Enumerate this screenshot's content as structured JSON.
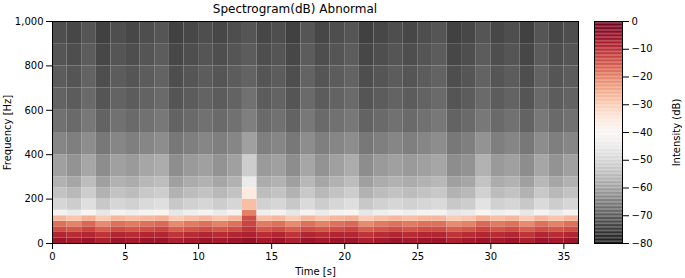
{
  "chart_data": {
    "type": "heatmap",
    "title": "Spectrogram(dB) Abnormal",
    "x_label": "Time [s]",
    "y_label": "Frequency [Hz]",
    "xlim": [
      0,
      36
    ],
    "xticks": [
      0,
      5,
      10,
      15,
      20,
      25,
      30,
      35
    ],
    "ylim": [
      0,
      1000
    ],
    "yticks": [
      0,
      200,
      400,
      600,
      800,
      1000
    ],
    "time_bins": [
      0,
      1,
      2,
      3,
      4,
      5,
      6,
      7,
      8,
      9,
      10,
      11,
      12,
      13,
      14,
      15,
      16,
      17,
      18,
      19,
      20,
      21,
      22,
      23,
      24,
      25,
      26,
      27,
      28,
      29,
      30,
      31,
      32,
      33,
      34,
      35,
      36
    ],
    "frequency_bins": [
      0,
      25,
      50,
      75,
      100,
      125,
      150,
      200,
      250,
      300,
      400,
      500,
      600,
      700,
      800,
      900,
      1000
    ],
    "cells": [
      [
        -6,
        -7,
        -6,
        -8,
        -6,
        -7,
        -6,
        -6,
        -8,
        -7,
        -6,
        -7,
        -6,
        -5,
        -7,
        -6,
        -8,
        -6,
        -7,
        -6,
        -6,
        -8,
        -7,
        -6,
        -7,
        -6,
        -6,
        -8,
        -7,
        -6,
        -7,
        -6,
        -8,
        -6,
        -7,
        -6
      ],
      [
        -9,
        -10,
        -9,
        -11,
        -9,
        -10,
        -9,
        -9,
        -11,
        -10,
        -9,
        -10,
        -9,
        -8,
        -10,
        -9,
        -11,
        -9,
        -10,
        -9,
        -9,
        -11,
        -10,
        -9,
        -10,
        -9,
        -9,
        -11,
        -10,
        -9,
        -10,
        -9,
        -11,
        -9,
        -10,
        -9
      ],
      [
        -14,
        -15,
        -13,
        -16,
        -14,
        -15,
        -14,
        -13,
        -16,
        -15,
        -14,
        -15,
        -14,
        -11,
        -15,
        -14,
        -16,
        -14,
        -15,
        -14,
        -13,
        -16,
        -15,
        -14,
        -15,
        -14,
        -14,
        -16,
        -15,
        -13,
        -15,
        -14,
        -16,
        -14,
        -15,
        -14
      ],
      [
        -18,
        -20,
        -17,
        -21,
        -18,
        -19,
        -18,
        -17,
        -21,
        -19,
        -18,
        -20,
        -18,
        -13,
        -19,
        -18,
        -21,
        -18,
        -20,
        -18,
        -17,
        -21,
        -19,
        -18,
        -19,
        -18,
        -18,
        -21,
        -20,
        -17,
        -19,
        -18,
        -21,
        -18,
        -20,
        -18
      ],
      [
        -27,
        -29,
        -26,
        -30,
        -27,
        -28,
        -27,
        -26,
        -30,
        -28,
        -27,
        -29,
        -27,
        -14,
        -28,
        -27,
        -30,
        -27,
        -29,
        -27,
        -26,
        -30,
        -28,
        -27,
        -28,
        -27,
        -27,
        -30,
        -29,
        -26,
        -28,
        -27,
        -30,
        -27,
        -29,
        -27
      ],
      [
        -42,
        -45,
        -41,
        -46,
        -42,
        -44,
        -42,
        -41,
        -46,
        -44,
        -42,
        -45,
        -42,
        -20,
        -44,
        -42,
        -46,
        -42,
        -45,
        -42,
        -41,
        -46,
        -44,
        -42,
        -44,
        -42,
        -42,
        -46,
        -45,
        -41,
        -44,
        -42,
        -46,
        -42,
        -45,
        -42
      ],
      [
        -50,
        -52,
        -48,
        -53,
        -50,
        -51,
        -49,
        -48,
        -53,
        -51,
        -50,
        -52,
        -50,
        -28,
        -51,
        -50,
        -53,
        -49,
        -52,
        -50,
        -48,
        -53,
        -51,
        -50,
        -51,
        -50,
        -49,
        -53,
        -52,
        -47,
        -51,
        -50,
        -53,
        -49,
        -52,
        -50
      ],
      [
        -54,
        -56,
        -52,
        -57,
        -54,
        -55,
        -53,
        -52,
        -57,
        -55,
        -54,
        -56,
        -54,
        -36,
        -55,
        -54,
        -57,
        -53,
        -56,
        -54,
        -52,
        -57,
        -55,
        -54,
        -55,
        -54,
        -53,
        -57,
        -56,
        -51,
        -55,
        -54,
        -57,
        -53,
        -56,
        -54
      ],
      [
        -57,
        -59,
        -55,
        -60,
        -57,
        -58,
        -56,
        -55,
        -60,
        -58,
        -57,
        -59,
        -57,
        -45,
        -58,
        -57,
        -60,
        -56,
        -59,
        -57,
        -55,
        -60,
        -58,
        -57,
        -58,
        -57,
        -56,
        -60,
        -59,
        -54,
        -58,
        -57,
        -60,
        -56,
        -59,
        -57
      ],
      [
        -60,
        -62,
        -59,
        -63,
        -60,
        -61,
        -59,
        -58,
        -63,
        -61,
        -60,
        -62,
        -60,
        -52,
        -61,
        -60,
        -63,
        -59,
        -62,
        -60,
        -58,
        -63,
        -61,
        -60,
        -61,
        -60,
        -59,
        -63,
        -62,
        -57,
        -61,
        -60,
        -63,
        -59,
        -62,
        -60
      ],
      [
        -64,
        -65,
        -63,
        -66,
        -64,
        -65,
        -64,
        -63,
        -66,
        -65,
        -64,
        -65,
        -64,
        -60,
        -65,
        -64,
        -66,
        -63,
        -65,
        -64,
        -63,
        -66,
        -65,
        -64,
        -65,
        -64,
        -63,
        -66,
        -65,
        -62,
        -65,
        -64,
        -66,
        -63,
        -65,
        -64
      ],
      [
        -67,
        -68,
        -66,
        -69,
        -67,
        -68,
        -67,
        -66,
        -69,
        -68,
        -67,
        -68,
        -67,
        -65,
        -68,
        -67,
        -69,
        -66,
        -68,
        -67,
        -66,
        -69,
        -68,
        -67,
        -68,
        -67,
        -66,
        -69,
        -68,
        -66,
        -68,
        -67,
        -69,
        -66,
        -68,
        -67
      ],
      [
        -69,
        -70,
        -68,
        -71,
        -69,
        -70,
        -69,
        -68,
        -71,
        -70,
        -69,
        -70,
        -69,
        -67,
        -70,
        -69,
        -71,
        -68,
        -70,
        -69,
        -68,
        -71,
        -70,
        -69,
        -70,
        -69,
        -68,
        -71,
        -70,
        -68,
        -70,
        -69,
        -71,
        -68,
        -70,
        -69
      ],
      [
        -70,
        -71,
        -69,
        -72,
        -70,
        -71,
        -70,
        -69,
        -72,
        -71,
        -70,
        -71,
        -70,
        -69,
        -71,
        -70,
        -72,
        -69,
        -71,
        -70,
        -69,
        -72,
        -71,
        -70,
        -71,
        -70,
        -69,
        -72,
        -71,
        -69,
        -71,
        -70,
        -72,
        -69,
        -71,
        -70
      ],
      [
        -71,
        -72,
        -70,
        -73,
        -71,
        -72,
        -71,
        -70,
        -73,
        -72,
        -71,
        -72,
        -71,
        -70,
        -72,
        -71,
        -73,
        -70,
        -72,
        -71,
        -70,
        -73,
        -72,
        -71,
        -72,
        -71,
        -70,
        -73,
        -72,
        -70,
        -72,
        -71,
        -73,
        -70,
        -72,
        -71
      ],
      [
        -72,
        -73,
        -71,
        -74,
        -72,
        -73,
        -72,
        -71,
        -74,
        -73,
        -72,
        -73,
        -72,
        -71,
        -73,
        -72,
        -74,
        -71,
        -73,
        -72,
        -71,
        -74,
        -73,
        -72,
        -73,
        -72,
        -71,
        -74,
        -73,
        -71,
        -73,
        -72,
        -74,
        -71,
        -73,
        -72
      ]
    ],
    "colorbar": {
      "label": "Intensity (dB)",
      "range": [
        -80,
        0
      ],
      "ticks": [
        0,
        -10,
        -20,
        -30,
        -40,
        -50,
        -60,
        -70,
        -80
      ]
    }
  }
}
